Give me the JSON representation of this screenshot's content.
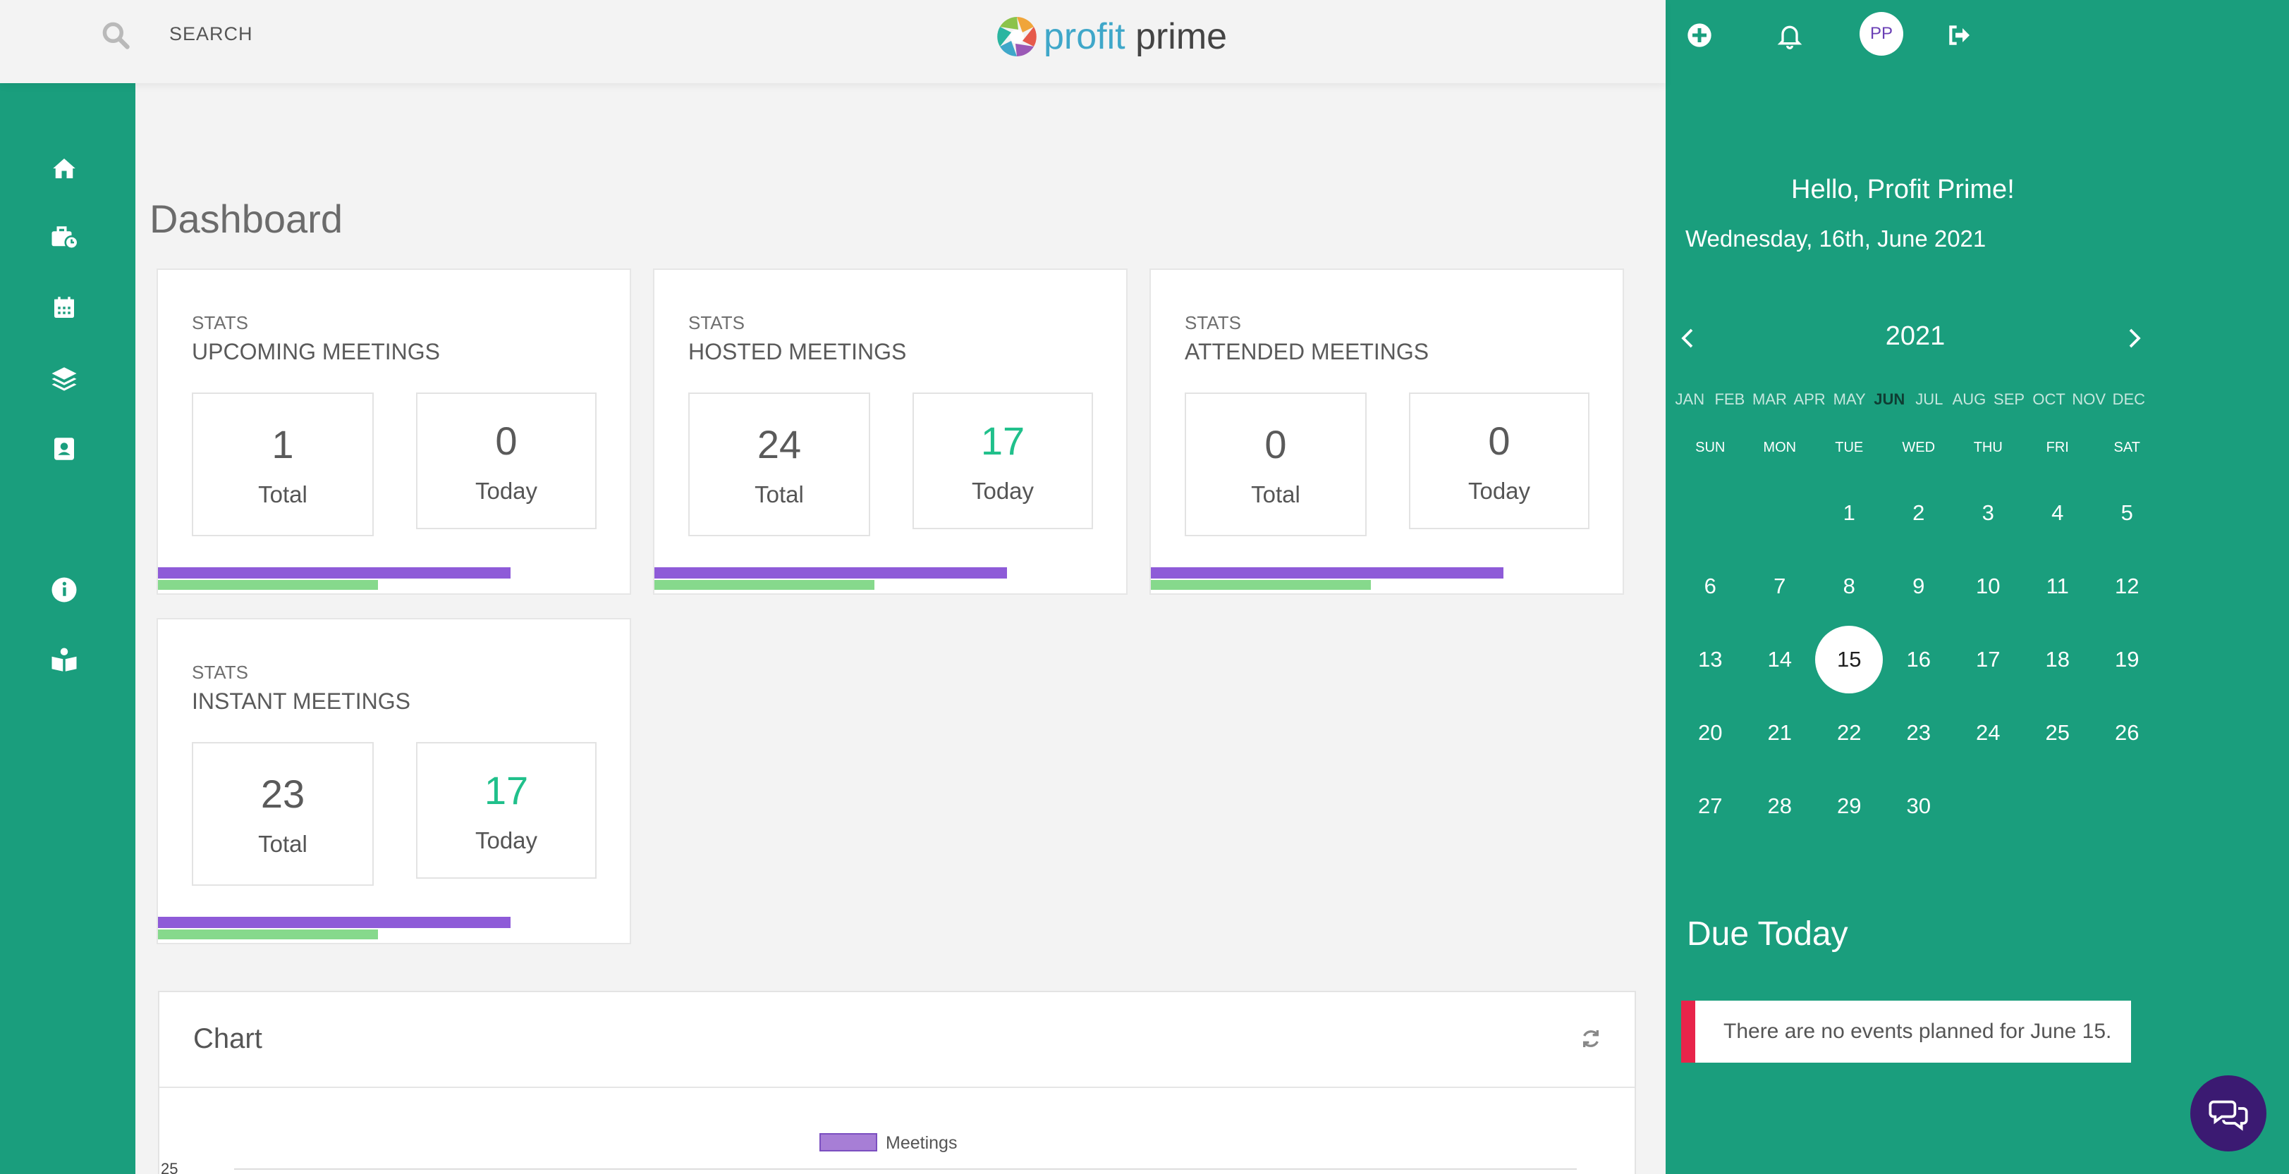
{
  "header": {
    "search_label": "SEARCH",
    "logo_part1": "profit",
    "logo_part2": "prime"
  },
  "sidebar": {
    "icons": [
      "home-icon",
      "briefcase-clock-icon",
      "calendar-icon",
      "layers-icon",
      "contact-card-icon",
      "info-icon",
      "book-reader-icon"
    ]
  },
  "main": {
    "title": "Dashboard",
    "stats": [
      {
        "label": "STATS",
        "title": "UPCOMING MEETINGS",
        "total": "1",
        "total_label": "Total",
        "today": "0",
        "today_label": "Today",
        "today_green": false
      },
      {
        "label": "STATS",
        "title": "HOSTED MEETINGS",
        "total": "24",
        "total_label": "Total",
        "today": "17",
        "today_label": "Today",
        "today_green": true
      },
      {
        "label": "STATS",
        "title": "ATTENDED MEETINGS",
        "total": "0",
        "total_label": "Total",
        "today": "0",
        "today_label": "Today",
        "today_green": false
      },
      {
        "label": "STATS",
        "title": "INSTANT MEETINGS",
        "total": "23",
        "total_label": "Total",
        "today": "17",
        "today_label": "Today",
        "today_green": true
      }
    ],
    "chart": {
      "title": "Chart",
      "legend": "Meetings",
      "y_top_tick": "25"
    }
  },
  "chart_data": {
    "type": "bar",
    "title": "",
    "series": [
      {
        "name": "Meetings",
        "values": []
      }
    ],
    "ylim": [
      0,
      25
    ],
    "legend": "top-center",
    "grid": true
  },
  "rightpanel": {
    "greeting": "Hello, Profit Prime!",
    "date": "Wednesday, 16th, June 2021",
    "avatar_initials": "PP",
    "year": "2021",
    "months": [
      "JAN",
      "FEB",
      "MAR",
      "APR",
      "MAY",
      "JUN",
      "JUL",
      "AUG",
      "SEP",
      "OCT",
      "NOV",
      "DEC"
    ],
    "active_month": "JUN",
    "weekdays": [
      "SUN",
      "MON",
      "TUE",
      "WED",
      "THU",
      "FRI",
      "SAT"
    ],
    "first_weekday_index": 2,
    "days_in_month": 30,
    "selected_day": 15,
    "due_title": "Due Today",
    "due_text": "There are no events planned for June 15."
  },
  "colors": {
    "brand_green": "#1a9e7d",
    "purple_bar": "#8e5bd8",
    "green_bar": "#86d98c",
    "today_green": "#20c08b",
    "due_accent": "#e8244a",
    "chat_button": "#3b1a72"
  }
}
